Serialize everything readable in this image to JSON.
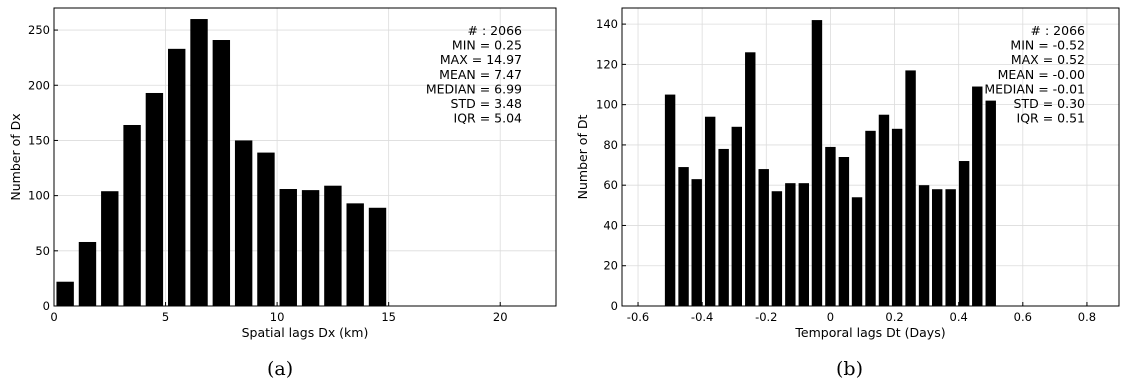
{
  "chart_data": [
    {
      "type": "bar",
      "title": "",
      "xlabel": "Spatial lags Dx (km)",
      "ylabel": "Number of Dx",
      "xlim": [
        0,
        22.5
      ],
      "ylim": [
        0,
        270
      ],
      "xticks": [
        0,
        5,
        10,
        15,
        20
      ],
      "yticks": [
        0,
        50,
        100,
        150,
        200,
        250
      ],
      "xtick_labels": [
        "0",
        "5",
        "10",
        "15",
        "20"
      ],
      "ytick_labels": [
        "0",
        "50",
        "100",
        "150",
        "200",
        "250"
      ],
      "bar_width": 0.78,
      "grid": true,
      "x": [
        0.5,
        1.5,
        2.5,
        3.5,
        4.5,
        5.5,
        6.5,
        7.5,
        8.5,
        9.5,
        10.5,
        11.5,
        12.5,
        13.5,
        14.5
      ],
      "values": [
        22,
        58,
        104,
        164,
        193,
        233,
        260,
        241,
        150,
        139,
        106,
        105,
        109,
        93,
        89
      ],
      "bar_color": "#000000",
      "stats": [
        "# : 2066",
        "MIN = 0.25",
        "MAX =  14.97",
        "MEAN = 7.47",
        "MEDIAN = 6.99",
        "STD = 3.48",
        "IQR = 5.04"
      ],
      "caption": "(a)"
    },
    {
      "type": "bar",
      "title": "",
      "xlabel": "Temporal lags Dt (Days)",
      "ylabel": "Number of Dt",
      "xlim": [
        -0.65,
        0.9
      ],
      "ylim": [
        0,
        148
      ],
      "xticks": [
        -0.6,
        -0.4,
        -0.2,
        0,
        0.2,
        0.4,
        0.6,
        0.8
      ],
      "yticks": [
        0,
        20,
        40,
        60,
        80,
        100,
        120,
        140
      ],
      "xtick_labels": [
        "-0.6",
        "-0.4",
        "-0.2",
        "0",
        "0.2",
        "0.4",
        "0.6",
        "0.8"
      ],
      "ytick_labels": [
        "0",
        "20",
        "40",
        "60",
        "80",
        "100",
        "120",
        "140"
      ],
      "bar_width": 0.0325,
      "grid": true,
      "x": [
        -0.5,
        -0.458,
        -0.417,
        -0.375,
        -0.333,
        -0.292,
        -0.25,
        -0.208,
        -0.167,
        -0.125,
        -0.083,
        -0.042,
        0.0,
        0.042,
        0.083,
        0.125,
        0.167,
        0.208,
        0.25,
        0.292,
        0.333,
        0.375,
        0.417,
        0.458,
        0.5
      ],
      "values": [
        105,
        69,
        63,
        94,
        78,
        89,
        126,
        68,
        57,
        61,
        61,
        142,
        79,
        74,
        54,
        87,
        95,
        88,
        117,
        60,
        58,
        58,
        72,
        109,
        102
      ],
      "bar_color": "#000000",
      "stats": [
        "# : 2066",
        "MIN = -0.52",
        "MAX =  0.52",
        "MEAN = -0.00",
        "MEDIAN = -0.01",
        "STD = 0.30",
        "IQR = 0.51"
      ],
      "caption": "(b)"
    }
  ]
}
